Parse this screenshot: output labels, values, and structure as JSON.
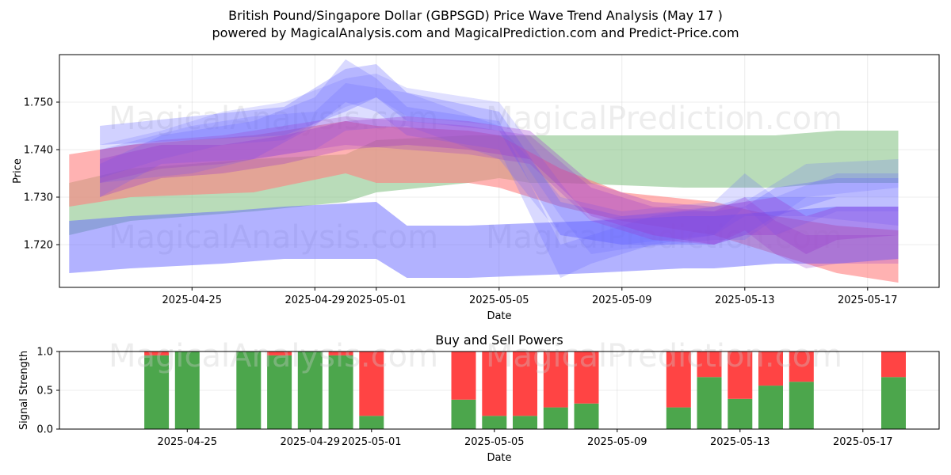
{
  "title_line1": "British Pound/Singapore Dollar (GBPSGD) Price Wave Trend Analysis (May 17 )",
  "title_line2": "powered by MagicalAnalysis.com and MagicalPrediction.com and Predict-Price.com",
  "watermarks": [
    "MagicalAnalysis.com",
    "MagicalPrediction.com"
  ],
  "colors": {
    "green": "#4ca64c",
    "red": "#ff4444",
    "blue": "#6666ff",
    "purple": "#9933cc",
    "band_green": "#7fbf7f",
    "band_red": "#ff7f7f"
  },
  "chart_data": [
    {
      "type": "area",
      "title": "",
      "xlabel": "Date",
      "ylabel": "Price",
      "xlim": [
        -2.3,
        25.4
      ],
      "ylim": [
        1.711,
        1.76
      ],
      "grid": true,
      "x_tick_labels": [
        "2025-04-25",
        "2025-04-29",
        "2025-05-01",
        "2025-05-05",
        "2025-05-09",
        "2025-05-13",
        "2025-05-17"
      ],
      "x_tick_positions": [
        2,
        6,
        8,
        12,
        16,
        20,
        24
      ],
      "y_ticks": [
        1.72,
        1.73,
        1.74,
        1.75
      ],
      "y_tick_labels": [
        "1.720",
        "1.730",
        "1.740",
        "1.750"
      ],
      "x_day0": "2025-04-23",
      "series": [
        {
          "name": "green band",
          "color": "#7fbf7f",
          "opacity": 0.55,
          "x": [
            -2,
            0,
            4,
            7,
            8,
            11,
            12,
            13,
            14,
            18,
            21,
            23,
            25
          ],
          "lower": [
            1.722,
            1.725,
            1.727,
            1.729,
            1.731,
            1.733,
            1.734,
            1.733,
            1.733,
            1.732,
            1.732,
            1.733,
            1.733
          ],
          "upper": [
            1.733,
            1.736,
            1.738,
            1.739,
            1.742,
            1.743,
            1.743,
            1.743,
            1.743,
            1.743,
            1.743,
            1.744,
            1.744
          ]
        },
        {
          "name": "red band",
          "color": "#ff7f7f",
          "opacity": 0.6,
          "x": [
            -2,
            0,
            4,
            7,
            8,
            11,
            12,
            14,
            16,
            19,
            21,
            23,
            25
          ],
          "lower": [
            1.728,
            1.73,
            1.731,
            1.735,
            1.733,
            1.733,
            1.732,
            1.728,
            1.725,
            1.722,
            1.718,
            1.714,
            1.712
          ],
          "upper": [
            1.739,
            1.741,
            1.743,
            1.746,
            1.745,
            1.744,
            1.743,
            1.736,
            1.731,
            1.729,
            1.726,
            1.724,
            1.723
          ]
        },
        {
          "name": "blue low band",
          "color": "#6666ff",
          "opacity": 0.5,
          "x": [
            -2,
            0,
            3,
            5,
            8,
            9,
            11,
            15,
            18,
            19,
            21,
            23,
            25
          ],
          "lower": [
            1.714,
            1.715,
            1.716,
            1.717,
            1.717,
            1.713,
            1.713,
            1.714,
            1.715,
            1.715,
            1.716,
            1.716,
            1.717
          ],
          "upper": [
            1.725,
            1.726,
            1.727,
            1.728,
            1.729,
            1.724,
            1.724,
            1.725,
            1.726,
            1.726,
            1.727,
            1.728,
            1.728
          ]
        },
        {
          "name": "blue wave 1",
          "color": "#6666ff",
          "opacity": 0.3,
          "x": [
            -1,
            2,
            5,
            7,
            8,
            9,
            12,
            14,
            16,
            18,
            19,
            20,
            21,
            23,
            25
          ],
          "lower": [
            1.741,
            1.742,
            1.743,
            1.748,
            1.751,
            1.746,
            1.744,
            1.722,
            1.72,
            1.72,
            1.72,
            1.722,
            1.726,
            1.73,
            1.73
          ],
          "upper": [
            1.745,
            1.747,
            1.749,
            1.757,
            1.758,
            1.752,
            1.748,
            1.729,
            1.726,
            1.727,
            1.727,
            1.728,
            1.732,
            1.734,
            1.734
          ]
        },
        {
          "name": "blue wave 2",
          "color": "#6666ff",
          "opacity": 0.25,
          "x": [
            -1,
            1,
            4,
            6,
            7,
            8,
            9,
            12,
            14,
            15,
            17,
            19,
            20,
            22,
            25
          ],
          "lower": [
            1.73,
            1.737,
            1.738,
            1.745,
            1.75,
            1.748,
            1.743,
            1.74,
            1.713,
            1.716,
            1.72,
            1.722,
            1.726,
            1.726,
            1.724
          ],
          "upper": [
            1.737,
            1.743,
            1.746,
            1.751,
            1.759,
            1.755,
            1.749,
            1.746,
            1.72,
            1.722,
            1.726,
            1.728,
            1.73,
            1.73,
            1.73
          ]
        },
        {
          "name": "blue wave 3",
          "color": "#6666ff",
          "opacity": 0.22,
          "x": [
            -1,
            2,
            4,
            6,
            7,
            9,
            12,
            13,
            14,
            16,
            19,
            20,
            21,
            23,
            25
          ],
          "lower": [
            1.733,
            1.735,
            1.738,
            1.74,
            1.744,
            1.745,
            1.738,
            1.73,
            1.722,
            1.72,
            1.722,
            1.728,
            1.722,
            1.727,
            1.727
          ],
          "upper": [
            1.74,
            1.745,
            1.747,
            1.748,
            1.754,
            1.752,
            1.745,
            1.738,
            1.73,
            1.727,
            1.729,
            1.735,
            1.73,
            1.735,
            1.735
          ]
        },
        {
          "name": "blue wave 4",
          "color": "#6666ff",
          "opacity": 0.2,
          "x": [
            -1,
            1,
            3,
            5,
            7,
            8,
            9,
            12,
            14,
            15,
            16,
            19,
            20,
            22,
            25
          ],
          "lower": [
            1.734,
            1.738,
            1.741,
            1.742,
            1.749,
            1.751,
            1.747,
            1.745,
            1.726,
            1.718,
            1.719,
            1.721,
            1.721,
            1.73,
            1.732
          ],
          "upper": [
            1.741,
            1.744,
            1.748,
            1.75,
            1.755,
            1.756,
            1.753,
            1.75,
            1.733,
            1.725,
            1.726,
            1.728,
            1.729,
            1.737,
            1.738
          ]
        },
        {
          "name": "purple wave 1",
          "color": "#9933cc",
          "opacity": 0.3,
          "x": [
            -1,
            1,
            3,
            5,
            7,
            9,
            11,
            13,
            15,
            17,
            19,
            20,
            21,
            22,
            23,
            25
          ],
          "lower": [
            1.73,
            1.734,
            1.735,
            1.737,
            1.74,
            1.741,
            1.74,
            1.738,
            1.726,
            1.722,
            1.72,
            1.722,
            1.722,
            1.718,
            1.721,
            1.722
          ],
          "upper": [
            1.738,
            1.741,
            1.741,
            1.743,
            1.746,
            1.747,
            1.746,
            1.744,
            1.733,
            1.729,
            1.728,
            1.729,
            1.73,
            1.726,
            1.728,
            1.728
          ]
        },
        {
          "name": "purple wave 2",
          "color": "#9933cc",
          "opacity": 0.25,
          "x": [
            -1,
            1,
            3,
            5,
            7,
            9,
            11,
            13,
            15,
            17,
            19,
            20,
            21,
            22,
            23,
            25
          ],
          "lower": [
            1.733,
            1.736,
            1.737,
            1.739,
            1.741,
            1.74,
            1.739,
            1.737,
            1.725,
            1.721,
            1.72,
            1.723,
            1.718,
            1.715,
            1.716,
            1.716
          ],
          "upper": [
            1.74,
            1.742,
            1.743,
            1.745,
            1.747,
            1.746,
            1.745,
            1.743,
            1.732,
            1.728,
            1.727,
            1.73,
            1.725,
            1.722,
            1.722,
            1.722
          ]
        }
      ]
    },
    {
      "type": "bar",
      "title": "Buy and Sell Powers",
      "xlabel": "Date",
      "ylabel": "Signal Strength",
      "ylim": [
        0,
        1
      ],
      "y_ticks": [
        0,
        0.5,
        1
      ],
      "y_tick_labels": [
        "0.0",
        "0.5",
        "1.0"
      ],
      "x_tick_labels": [
        "2025-04-25",
        "2025-04-29",
        "2025-05-01",
        "2025-05-05",
        "2025-05-09",
        "2025-05-13",
        "2025-05-17"
      ],
      "x_tick_positions": [
        2,
        6,
        8,
        12,
        16,
        20,
        24
      ],
      "legend": "none",
      "x": [
        1,
        2,
        4,
        5,
        6,
        7,
        8,
        11,
        12,
        13,
        14,
        15,
        18,
        19,
        20,
        21,
        22,
        25
      ],
      "series": [
        {
          "name": "Buy",
          "color": "#4ca64c",
          "values": [
            0.95,
            1.0,
            1.0,
            0.95,
            1.0,
            0.95,
            0.17,
            0.38,
            0.17,
            0.17,
            0.28,
            0.33,
            0.28,
            0.67,
            0.39,
            0.56,
            0.61,
            0.67
          ]
        },
        {
          "name": "Sell",
          "color": "#ff4444",
          "values": [
            0.05,
            0.0,
            0.0,
            0.05,
            0.0,
            0.05,
            0.83,
            0.62,
            0.83,
            0.83,
            0.72,
            0.67,
            0.72,
            0.33,
            0.61,
            0.44,
            0.39,
            0.33
          ]
        }
      ]
    }
  ]
}
